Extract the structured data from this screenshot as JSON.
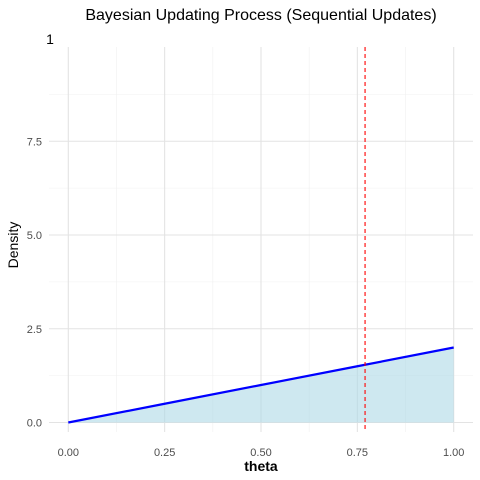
{
  "chart_data": {
    "type": "area",
    "title": "Bayesian Updating Process (Sequential Updates)",
    "panel_label": "1",
    "xlabel": "theta",
    "ylabel": "Density",
    "xlim": [
      0,
      1
    ],
    "ylim": [
      0,
      10
    ],
    "x_ticks": [
      0,
      0.25,
      0.5,
      0.75,
      1
    ],
    "x_tick_labels": [
      "0.00",
      "0.25",
      "0.50",
      "0.75",
      "1.00"
    ],
    "y_ticks": [
      0,
      2.5,
      5,
      7.5
    ],
    "y_tick_labels": [
      "0.0",
      "2.5",
      "5.0",
      "7.5"
    ],
    "grid": true,
    "series": [
      {
        "x": [
          0,
          0.25,
          0.5,
          0.75,
          1
        ],
        "y": [
          0,
          0.5,
          1,
          1.5,
          2
        ],
        "color": "#0000ff",
        "fill": "#add8e6"
      }
    ],
    "reference_line": {
      "x": 0.77,
      "color": "#ff0000",
      "style": "dashed"
    }
  }
}
